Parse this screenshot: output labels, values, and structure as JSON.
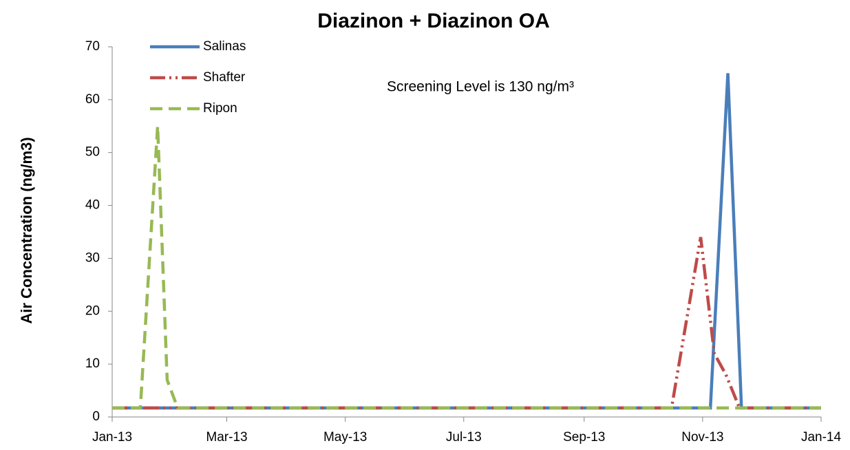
{
  "chart_data": {
    "type": "line",
    "title": "Diazinon + Diazinon OA",
    "y_label": "Air Concentration (ng/m3)",
    "annotation": "Screening Level is 130 ng/m³",
    "xlim": [
      0,
      365
    ],
    "xticks": [
      {
        "value": 0,
        "label": "Jan-13"
      },
      {
        "value": 59,
        "label": "Mar-13"
      },
      {
        "value": 120,
        "label": "May-13"
      },
      {
        "value": 181,
        "label": "Jul-13"
      },
      {
        "value": 243,
        "label": "Sep-13"
      },
      {
        "value": 304,
        "label": "Nov-13"
      },
      {
        "value": 365,
        "label": "Jan-14"
      }
    ],
    "ylim": [
      0,
      70
    ],
    "yticks": [
      0,
      10,
      20,
      30,
      40,
      50,
      60,
      70
    ],
    "series": [
      {
        "name": "Salinas",
        "color": "#4a7ebb",
        "dash": "solid",
        "x": [
          0,
          308,
          317,
          324,
          365
        ],
        "values": [
          1.7,
          1.7,
          65,
          1.7,
          1.7
        ]
      },
      {
        "name": "Shafter",
        "color": "#be4b48",
        "dash": "dash-dot-dot",
        "x": [
          0,
          288,
          303,
          310,
          316,
          323,
          365
        ],
        "values": [
          1.7,
          1.7,
          34,
          12,
          8,
          1.7,
          1.7
        ]
      },
      {
        "name": "Ripon",
        "color": "#98b954",
        "dash": "dash",
        "x": [
          0,
          14.5,
          23.4,
          28.3,
          33.7,
          365
        ],
        "values": [
          1.7,
          1.7,
          55,
          7,
          1.7,
          1.7
        ]
      }
    ]
  }
}
